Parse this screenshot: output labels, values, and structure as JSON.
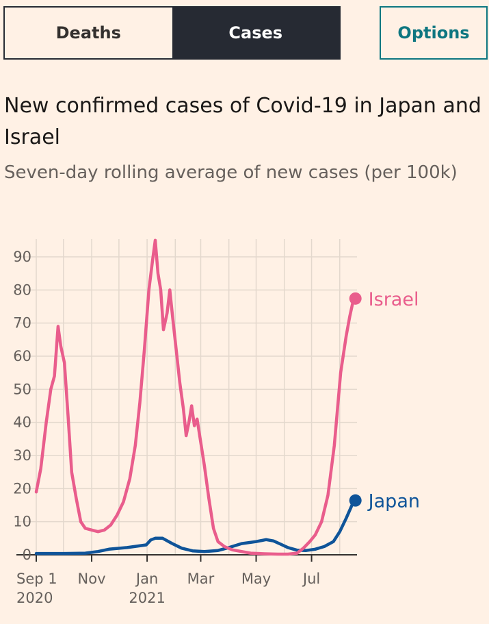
{
  "tabs": [
    {
      "label": "Deaths",
      "active": false
    },
    {
      "label": "Cases",
      "active": true
    }
  ],
  "options_label": "Options",
  "title": "New confirmed cases of Covid-19 in Japan and Israel",
  "subtitle": "Seven-day rolling average of new cases (per 100k)",
  "colors": {
    "israel": "#e95d8c",
    "japan": "#0f5499",
    "grid": "#e3d8cd",
    "active_tab": "#262a33",
    "accent": "#0d7680"
  },
  "chart_data": {
    "type": "line",
    "title": "New confirmed cases of Covid-19 in Japan and Israel",
    "subtitle": "Seven-day rolling average of new cases (per 100k)",
    "xlabel": "",
    "ylabel": "",
    "ylim": [
      0,
      95
    ],
    "yticks": [
      0,
      10,
      20,
      30,
      40,
      50,
      60,
      70,
      80,
      90
    ],
    "xlim": [
      "2020-09-01",
      "2021-08-20"
    ],
    "xticks": [
      {
        "date": "2020-09-01",
        "label": "Sep 1",
        "sublabel": "2020"
      },
      {
        "date": "2020-11-01",
        "label": "Nov",
        "sublabel": ""
      },
      {
        "date": "2021-01-01",
        "label": "Jan",
        "sublabel": "2021"
      },
      {
        "date": "2021-03-01",
        "label": "Mar",
        "sublabel": ""
      },
      {
        "date": "2021-05-01",
        "label": "May",
        "sublabel": ""
      },
      {
        "date": "2021-07-01",
        "label": "Jul",
        "sublabel": ""
      }
    ],
    "grid": true,
    "series": [
      {
        "name": "Israel",
        "color": "#e95d8c",
        "points": [
          [
            "2020-09-01",
            19
          ],
          [
            "2020-09-06",
            26
          ],
          [
            "2020-09-12",
            40
          ],
          [
            "2020-09-17",
            50
          ],
          [
            "2020-09-21",
            54
          ],
          [
            "2020-09-25",
            69
          ],
          [
            "2020-09-28",
            63
          ],
          [
            "2020-10-02",
            58
          ],
          [
            "2020-10-06",
            42
          ],
          [
            "2020-10-10",
            25
          ],
          [
            "2020-10-15",
            17
          ],
          [
            "2020-10-20",
            10
          ],
          [
            "2020-10-25",
            8
          ],
          [
            "2020-11-01",
            7.5
          ],
          [
            "2020-11-08",
            7
          ],
          [
            "2020-11-15",
            7.5
          ],
          [
            "2020-11-22",
            9
          ],
          [
            "2020-11-29",
            12
          ],
          [
            "2020-12-06",
            16
          ],
          [
            "2020-12-13",
            23
          ],
          [
            "2020-12-19",
            33
          ],
          [
            "2020-12-24",
            46
          ],
          [
            "2020-12-29",
            62
          ],
          [
            "2021-01-03",
            80
          ],
          [
            "2021-01-07",
            89
          ],
          [
            "2021-01-10",
            95
          ],
          [
            "2021-01-13",
            85
          ],
          [
            "2021-01-16",
            80
          ],
          [
            "2021-01-19",
            68
          ],
          [
            "2021-01-23",
            73
          ],
          [
            "2021-01-26",
            80
          ],
          [
            "2021-01-29",
            72
          ],
          [
            "2021-02-02",
            62
          ],
          [
            "2021-02-06",
            52
          ],
          [
            "2021-02-10",
            44
          ],
          [
            "2021-02-13",
            36
          ],
          [
            "2021-02-16",
            40
          ],
          [
            "2021-02-19",
            45
          ],
          [
            "2021-02-22",
            39
          ],
          [
            "2021-02-25",
            41
          ],
          [
            "2021-03-01",
            34
          ],
          [
            "2021-03-05",
            27
          ],
          [
            "2021-03-10",
            17
          ],
          [
            "2021-03-15",
            8
          ],
          [
            "2021-03-20",
            4
          ],
          [
            "2021-03-27",
            2.5
          ],
          [
            "2021-04-05",
            1.5
          ],
          [
            "2021-04-15",
            1
          ],
          [
            "2021-04-25",
            0.5
          ],
          [
            "2021-05-10",
            0.3
          ],
          [
            "2021-05-25",
            0.2
          ],
          [
            "2021-06-05",
            0.2
          ],
          [
            "2021-06-15",
            0.5
          ],
          [
            "2021-06-22",
            2
          ],
          [
            "2021-06-29",
            4
          ],
          [
            "2021-07-05",
            6
          ],
          [
            "2021-07-12",
            10
          ],
          [
            "2021-07-19",
            18
          ],
          [
            "2021-07-26",
            33
          ],
          [
            "2021-08-02",
            55
          ],
          [
            "2021-08-08",
            66
          ],
          [
            "2021-08-12",
            72
          ],
          [
            "2021-08-16",
            77
          ]
        ]
      },
      {
        "name": "Japan",
        "color": "#0f5499",
        "points": [
          [
            "2020-09-01",
            0.4
          ],
          [
            "2020-10-01",
            0.4
          ],
          [
            "2020-10-25",
            0.5
          ],
          [
            "2020-11-08",
            1
          ],
          [
            "2020-11-20",
            1.7
          ],
          [
            "2020-12-10",
            2.2
          ],
          [
            "2020-12-31",
            3
          ],
          [
            "2021-01-05",
            4.5
          ],
          [
            "2021-01-10",
            5
          ],
          [
            "2021-01-18",
            5
          ],
          [
            "2021-01-28",
            3.5
          ],
          [
            "2021-02-08",
            2
          ],
          [
            "2021-02-20",
            1.2
          ],
          [
            "2021-03-05",
            1
          ],
          [
            "2021-03-20",
            1.3
          ],
          [
            "2021-04-01",
            2.2
          ],
          [
            "2021-04-15",
            3.4
          ],
          [
            "2021-05-01",
            4
          ],
          [
            "2021-05-12",
            4.6
          ],
          [
            "2021-05-20",
            4.2
          ],
          [
            "2021-05-28",
            3.2
          ],
          [
            "2021-06-05",
            2.2
          ],
          [
            "2021-06-15",
            1.4
          ],
          [
            "2021-06-25",
            1.3
          ],
          [
            "2021-07-05",
            1.7
          ],
          [
            "2021-07-15",
            2.5
          ],
          [
            "2021-07-25",
            4
          ],
          [
            "2021-08-01",
            7
          ],
          [
            "2021-08-08",
            11
          ],
          [
            "2021-08-12",
            13.5
          ],
          [
            "2021-08-16",
            16
          ]
        ]
      }
    ]
  }
}
